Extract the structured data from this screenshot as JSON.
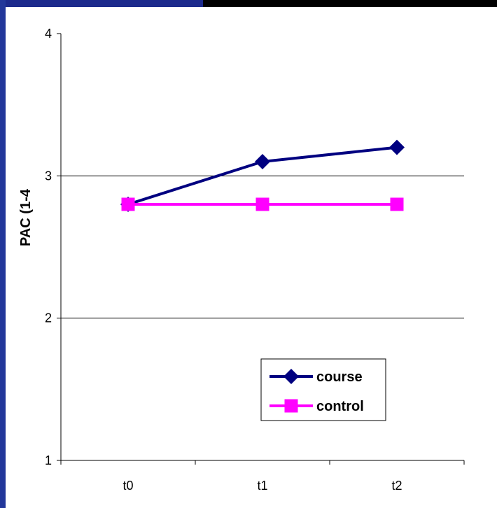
{
  "colors": {
    "slide_background": "#000000",
    "slide_accent_top": "#1c2a8c",
    "slide_accent_left": "#22379a",
    "chart_background": "#ffffff",
    "course": "#000080",
    "control": "#ff00ff"
  },
  "chart_data": {
    "type": "line",
    "title": "",
    "xlabel": "",
    "ylabel": "PAC (1-4",
    "categories": [
      "t0",
      "t1",
      "t2"
    ],
    "ylim": [
      1,
      4
    ],
    "yticks": [
      1,
      2,
      3,
      4
    ],
    "grid": true,
    "legend_position": "bottom-right",
    "series": [
      {
        "name": "course",
        "marker": "diamond",
        "color": "#000080",
        "values": [
          2.8,
          3.1,
          3.2
        ]
      },
      {
        "name": "control",
        "marker": "square",
        "color": "#ff00ff",
        "values": [
          2.8,
          2.8,
          2.8
        ]
      }
    ]
  }
}
